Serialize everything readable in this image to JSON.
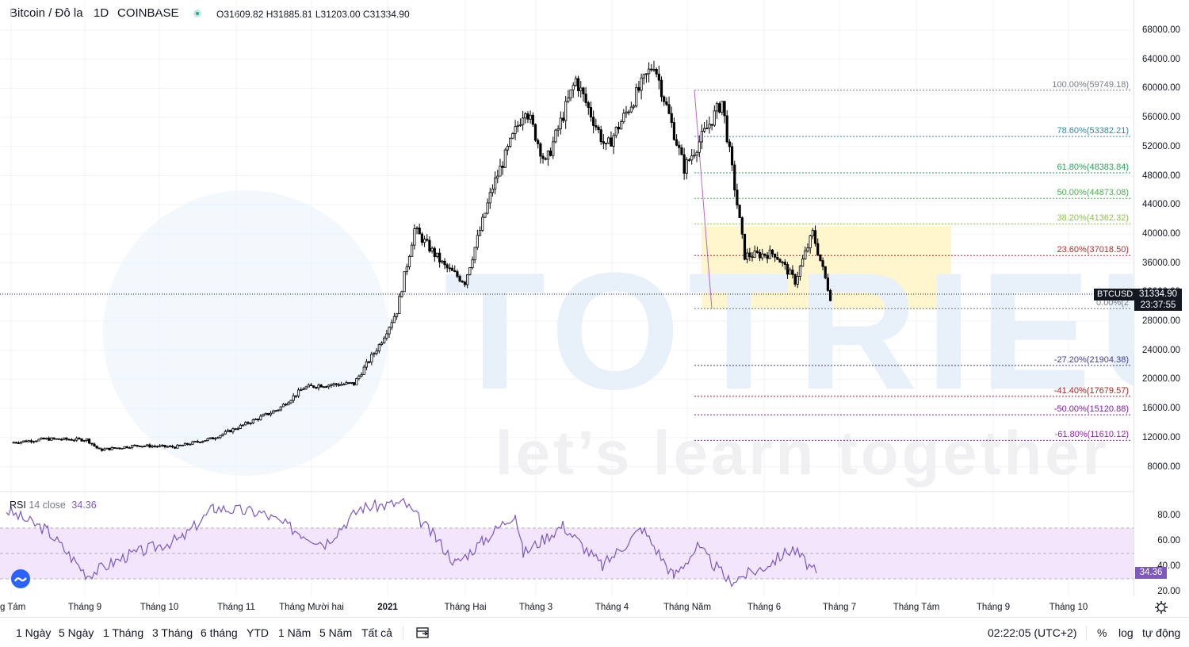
{
  "header": {
    "symbol": "Bitcoin / Đô la",
    "interval": "1D",
    "exchange": "COINBASE",
    "ohlc": {
      "o_label": "O",
      "o": "31609.82",
      "h_label": "H",
      "h": "31885.81",
      "l_label": "L",
      "l": "31203.00",
      "c_label": "C",
      "c": "31334.90"
    }
  },
  "price_axis": {
    "ticks": [
      "68000.00",
      "64000.00",
      "60000.00",
      "56000.00",
      "52000.00",
      "48000.00",
      "44000.00",
      "40000.00",
      "36000.00",
      "32000.00",
      "28000.00",
      "24000.00",
      "20000.00",
      "16000.00",
      "12000.00",
      "8000.00"
    ],
    "current_symbol": "BTCUSD",
    "current_price": "31334.90",
    "countdown": "23:37:55"
  },
  "fibonacci": {
    "levels": [
      {
        "label": "100.00%(59749.18)",
        "price": 59749.18,
        "color": "#787b86"
      },
      {
        "label": "78.60%(53382.21)",
        "price": 53382.21,
        "color": "#2e8ba8"
      },
      {
        "label": "61.80%(48383.84)",
        "price": 48383.84,
        "color": "#26a65b"
      },
      {
        "label": "50.00%(44873.08)",
        "price": 44873.08,
        "color": "#4caf50"
      },
      {
        "label": "38.20%(41362.32)",
        "price": 41362.32,
        "color": "#8bc34a"
      },
      {
        "label": "23.60%(37018.50)",
        "price": 37018.5,
        "color": "#c62828"
      },
      {
        "label": "0.00%(2",
        "price": 29720,
        "color": "#787b86"
      },
      {
        "label": "-27.20%(21904.38)",
        "price": 21904.38,
        "color": "#3f3d99"
      },
      {
        "label": "-41.40%(17679.57)",
        "price": 17679.57,
        "color": "#b71c1c"
      },
      {
        "label": "-50.00%(15120.88)",
        "price": 15120.88,
        "color": "#7b1fa2"
      },
      {
        "label": "-61.80%(11610.12)",
        "price": 11610.12,
        "color": "#8e24aa"
      }
    ]
  },
  "watermark": {
    "brand": "TOTRIEU",
    "tagline": "let’s learn together"
  },
  "rsi": {
    "title": "RSI",
    "params": "14 close",
    "value": "34.36",
    "ticks": [
      "80.00",
      "60.00",
      "40.00",
      "20.00"
    ],
    "upper_band": 70,
    "lower_band": 30
  },
  "time_axis": {
    "labels": [
      "g Tám",
      "Tháng 9",
      "Tháng 10",
      "Tháng 11",
      "Tháng Mười hai",
      "2021",
      "Tháng Hai",
      "Tháng 3",
      "Tháng 4",
      "Tháng Năm",
      "Tháng 6",
      "Tháng 7",
      "Tháng Tám",
      "Tháng 9",
      "Tháng 10"
    ]
  },
  "bottom_bar": {
    "ranges": [
      "1 Ngày",
      "5 Ngày",
      "1 Tháng",
      "3 Tháng",
      "6 tháng",
      "YTD",
      "1 Năm",
      "5 Năm",
      "Tất cả"
    ],
    "clock": "02:22:05 (UTC+2)",
    "percent": "%",
    "log": "log",
    "auto": "tự động"
  },
  "colors": {
    "candle": "#000000",
    "rsi_line": "#7e57c2",
    "rsi_band": "#f3e5fc",
    "zone": "#fff4c4",
    "grid": "#f0f3fa",
    "fib_line": "#9598a1",
    "accent": "#2962ff"
  },
  "chart_data": {
    "type": "candlestick",
    "title": "Bitcoin / Đô la",
    "ylabel": "",
    "xlabel": "",
    "ylim": [
      6000,
      70000
    ],
    "x_range": [
      "2020-08-01",
      "2021-10-31"
    ],
    "close_series": [
      {
        "date": "2020-08-01",
        "close": 11300
      },
      {
        "date": "2020-08-15",
        "close": 11800
      },
      {
        "date": "2020-08-31",
        "close": 11700
      },
      {
        "date": "2020-09-05",
        "close": 10300
      },
      {
        "date": "2020-09-20",
        "close": 10900
      },
      {
        "date": "2020-10-05",
        "close": 10700
      },
      {
        "date": "2020-10-20",
        "close": 11900
      },
      {
        "date": "2020-11-01",
        "close": 13700
      },
      {
        "date": "2020-11-15",
        "close": 15900
      },
      {
        "date": "2020-11-25",
        "close": 18800
      },
      {
        "date": "2020-12-01",
        "close": 19200
      },
      {
        "date": "2020-12-15",
        "close": 19400
      },
      {
        "date": "2020-12-25",
        "close": 24700
      },
      {
        "date": "2021-01-01",
        "close": 29400
      },
      {
        "date": "2021-01-08",
        "close": 40600
      },
      {
        "date": "2021-01-20",
        "close": 35500
      },
      {
        "date": "2021-01-28",
        "close": 33400
      },
      {
        "date": "2021-02-08",
        "close": 46400
      },
      {
        "date": "2021-02-21",
        "close": 57500
      },
      {
        "date": "2021-03-01",
        "close": 49600
      },
      {
        "date": "2021-03-13",
        "close": 61200
      },
      {
        "date": "2021-03-25",
        "close": 51700
      },
      {
        "date": "2021-04-13",
        "close": 63500
      },
      {
        "date": "2021-04-25",
        "close": 49000
      },
      {
        "date": "2021-05-10",
        "close": 58200
      },
      {
        "date": "2021-05-19",
        "close": 37000
      },
      {
        "date": "2021-05-31",
        "close": 37300
      },
      {
        "date": "2021-06-08",
        "close": 33500
      },
      {
        "date": "2021-06-15",
        "close": 40100
      },
      {
        "date": "2021-06-22",
        "close": 31334.9
      }
    ],
    "annotations": [
      "Fibonacci retracement 100%-0% with extensions",
      "Yellow consolidation zone 30000-41000"
    ]
  }
}
